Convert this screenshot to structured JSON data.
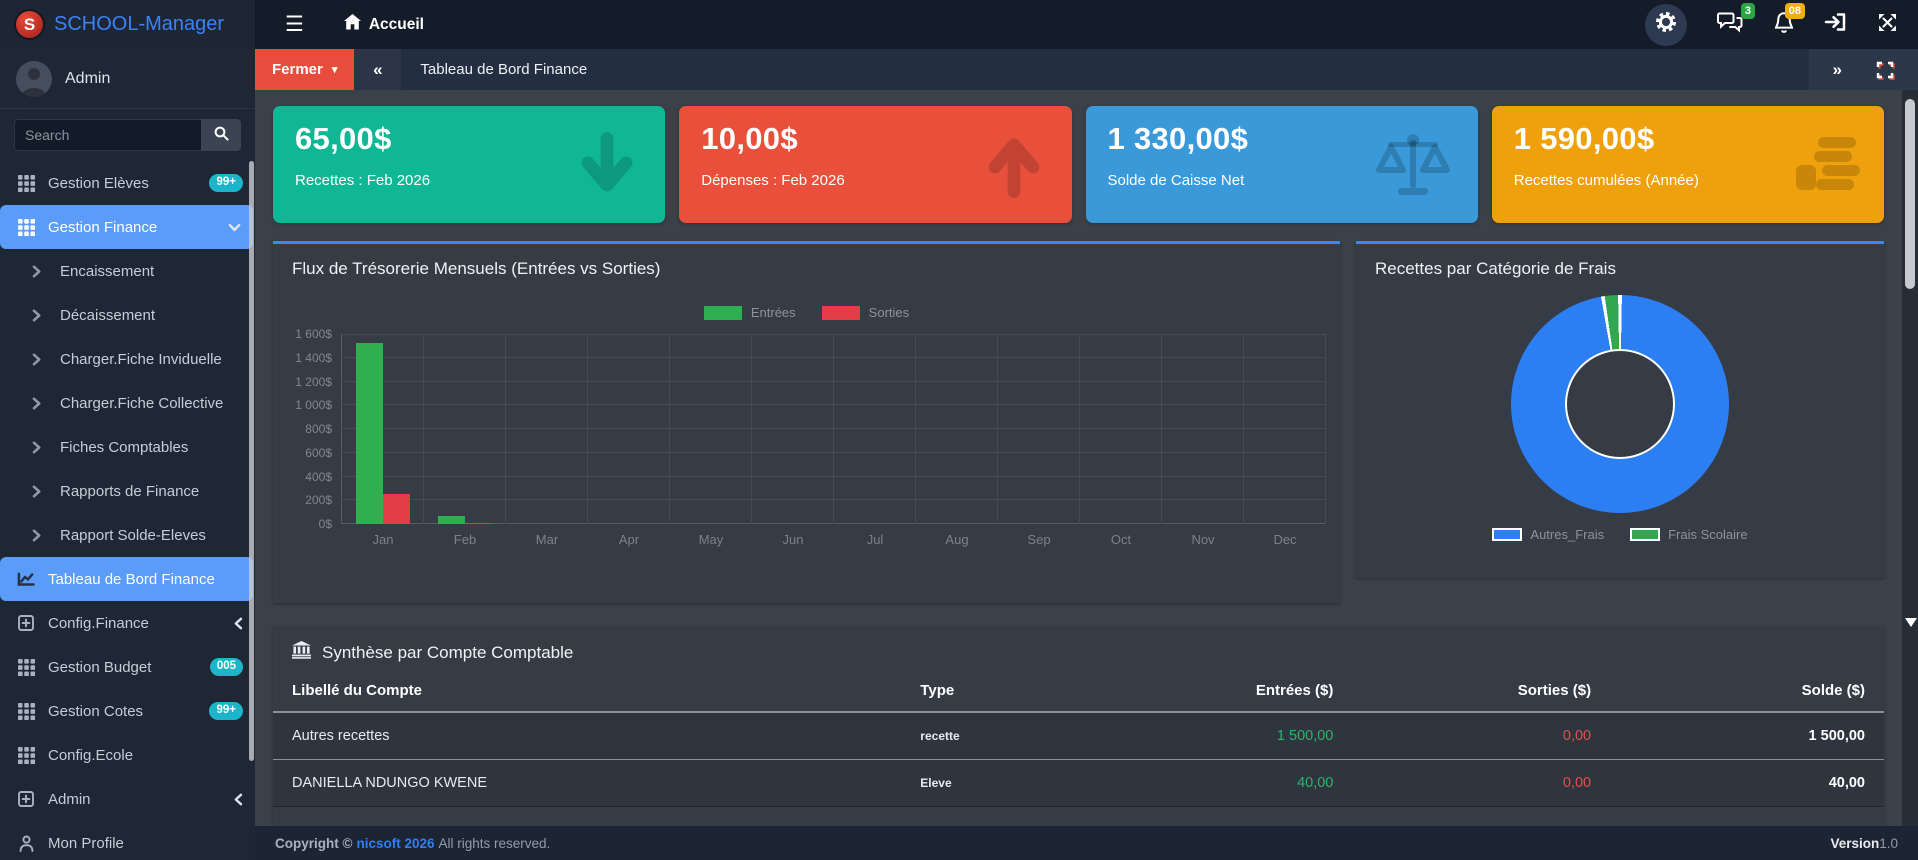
{
  "app": {
    "name": "SCHOOL-Manager",
    "logo_letter": "S"
  },
  "theme": {
    "accent_blue": "#3d86f0",
    "active_item": "#5b9cf9",
    "badge_teal": "#1db5ca",
    "positive_green": "#2db567",
    "negative_red": "#e0514f"
  },
  "navbar": {
    "hamburger": "☰",
    "home_label": "Accueil",
    "messages_badge": "3",
    "notifications_badge": "08"
  },
  "toolbar": {
    "close_label": "Fermer",
    "caret": "▾",
    "collapse_left": "«",
    "collapse_right": "»",
    "breadcrumb": "Tableau de Bord Finance"
  },
  "sidebar": {
    "user": "Admin",
    "search_placeholder": "Search",
    "items": [
      {
        "icon": "grid",
        "label": "Gestion Elèves",
        "badge": "99+"
      },
      {
        "icon": "grid",
        "label": "Gestion Finance",
        "active": true,
        "chevron": "down"
      },
      {
        "icon": "chevright",
        "label": "Encaissement",
        "sub": true
      },
      {
        "icon": "chevright",
        "label": "Décaissement",
        "sub": true
      },
      {
        "icon": "chevright",
        "label": "Charger.Fiche Inviduelle",
        "sub": true
      },
      {
        "icon": "chevright",
        "label": "Charger.Fiche Collective",
        "sub": true
      },
      {
        "icon": "chevright",
        "label": "Fiches Comptables",
        "sub": true
      },
      {
        "icon": "chevright",
        "label": "Rapports de Finance",
        "sub": true
      },
      {
        "icon": "chevright",
        "label": "Rapport Solde-Eleves",
        "sub": true
      },
      {
        "icon": "chartline",
        "label": "Tableau de Bord Finance",
        "active": true
      },
      {
        "icon": "plussquare",
        "label": "Config.Finance",
        "chevron": "left"
      },
      {
        "icon": "grid",
        "label": "Gestion Budget",
        "badge": "005"
      },
      {
        "icon": "grid",
        "label": "Gestion Cotes",
        "badge": "99+"
      },
      {
        "icon": "grid",
        "label": "Config.Ecole"
      },
      {
        "icon": "plussquare",
        "label": "Admin",
        "chevron": "left"
      },
      {
        "icon": "user",
        "label": "Mon Profile"
      }
    ]
  },
  "cards": [
    {
      "value": "65,00$",
      "label": "Recettes : Feb 2026",
      "color": "#10b795",
      "icon": "arrowdown"
    },
    {
      "value": "10,00$",
      "label": "Dépenses : Feb 2026",
      "color": "#e8503c",
      "icon": "arrowup"
    },
    {
      "value": "1 330,00$",
      "label": "Solde de Caisse Net",
      "color": "#3a9ad9",
      "icon": "scales"
    },
    {
      "value": "1 590,00$",
      "label": "Recettes cumulées (Année)",
      "color": "#efa10d",
      "icon": "coins"
    }
  ],
  "chart_data": [
    {
      "type": "bar",
      "title": "Flux de Trésorerie Mensuels (Entrées vs Sorties)",
      "categories": [
        "Jan",
        "Feb",
        "Mar",
        "Apr",
        "May",
        "Jun",
        "Jul",
        "Aug",
        "Sep",
        "Oct",
        "Nov",
        "Dec"
      ],
      "series": [
        {
          "name": "Entrées",
          "color": "#2faf4f",
          "values": [
            1525,
            65,
            0,
            0,
            0,
            0,
            0,
            0,
            0,
            0,
            0,
            0
          ]
        },
        {
          "name": "Sorties",
          "color": "#e23c49",
          "values": [
            250,
            10,
            0,
            0,
            0,
            0,
            0,
            0,
            0,
            0,
            0,
            0
          ]
        }
      ],
      "ylim": [
        0,
        1600
      ],
      "yticks": [
        "0$",
        "200$",
        "400$",
        "600$",
        "800$",
        "1 000$",
        "1 200$",
        "1 400$",
        "1 600$"
      ],
      "grid": true,
      "legend_position": "top",
      "currency": "$"
    },
    {
      "type": "pie",
      "title": "Recettes par Catégorie de Frais",
      "labels": [
        "Autres_Frais",
        "Frais Scolaire"
      ],
      "values": [
        1550,
        40
      ],
      "colors": [
        "#2c7ff2",
        "#2fa84f"
      ],
      "donut": true,
      "legend_position": "bottom"
    }
  ],
  "table": {
    "title": "Synthèse par Compte Comptable",
    "columns": [
      {
        "label": "Libellé du Compte",
        "align": "left"
      },
      {
        "label": "Type",
        "align": "left"
      },
      {
        "label": "Entrées ($)",
        "align": "right"
      },
      {
        "label": "Sorties ($)",
        "align": "right"
      },
      {
        "label": "Solde ($)",
        "align": "right"
      }
    ],
    "rows": [
      {
        "label": "Autres recettes",
        "type": "recette",
        "in": "1 500,00",
        "out": "0,00",
        "balance": "1 500,00"
      },
      {
        "label": "DANIELLA NDUNGO KWENE",
        "type": "Eleve",
        "in": "40,00",
        "out": "0,00",
        "balance": "40,00"
      }
    ]
  },
  "footer": {
    "copyright_prefix": "Copyright ©",
    "brand": "nicsoft 2026",
    "rights": "All rights reserved.",
    "version_label": "Version",
    "version": "1.0"
  }
}
